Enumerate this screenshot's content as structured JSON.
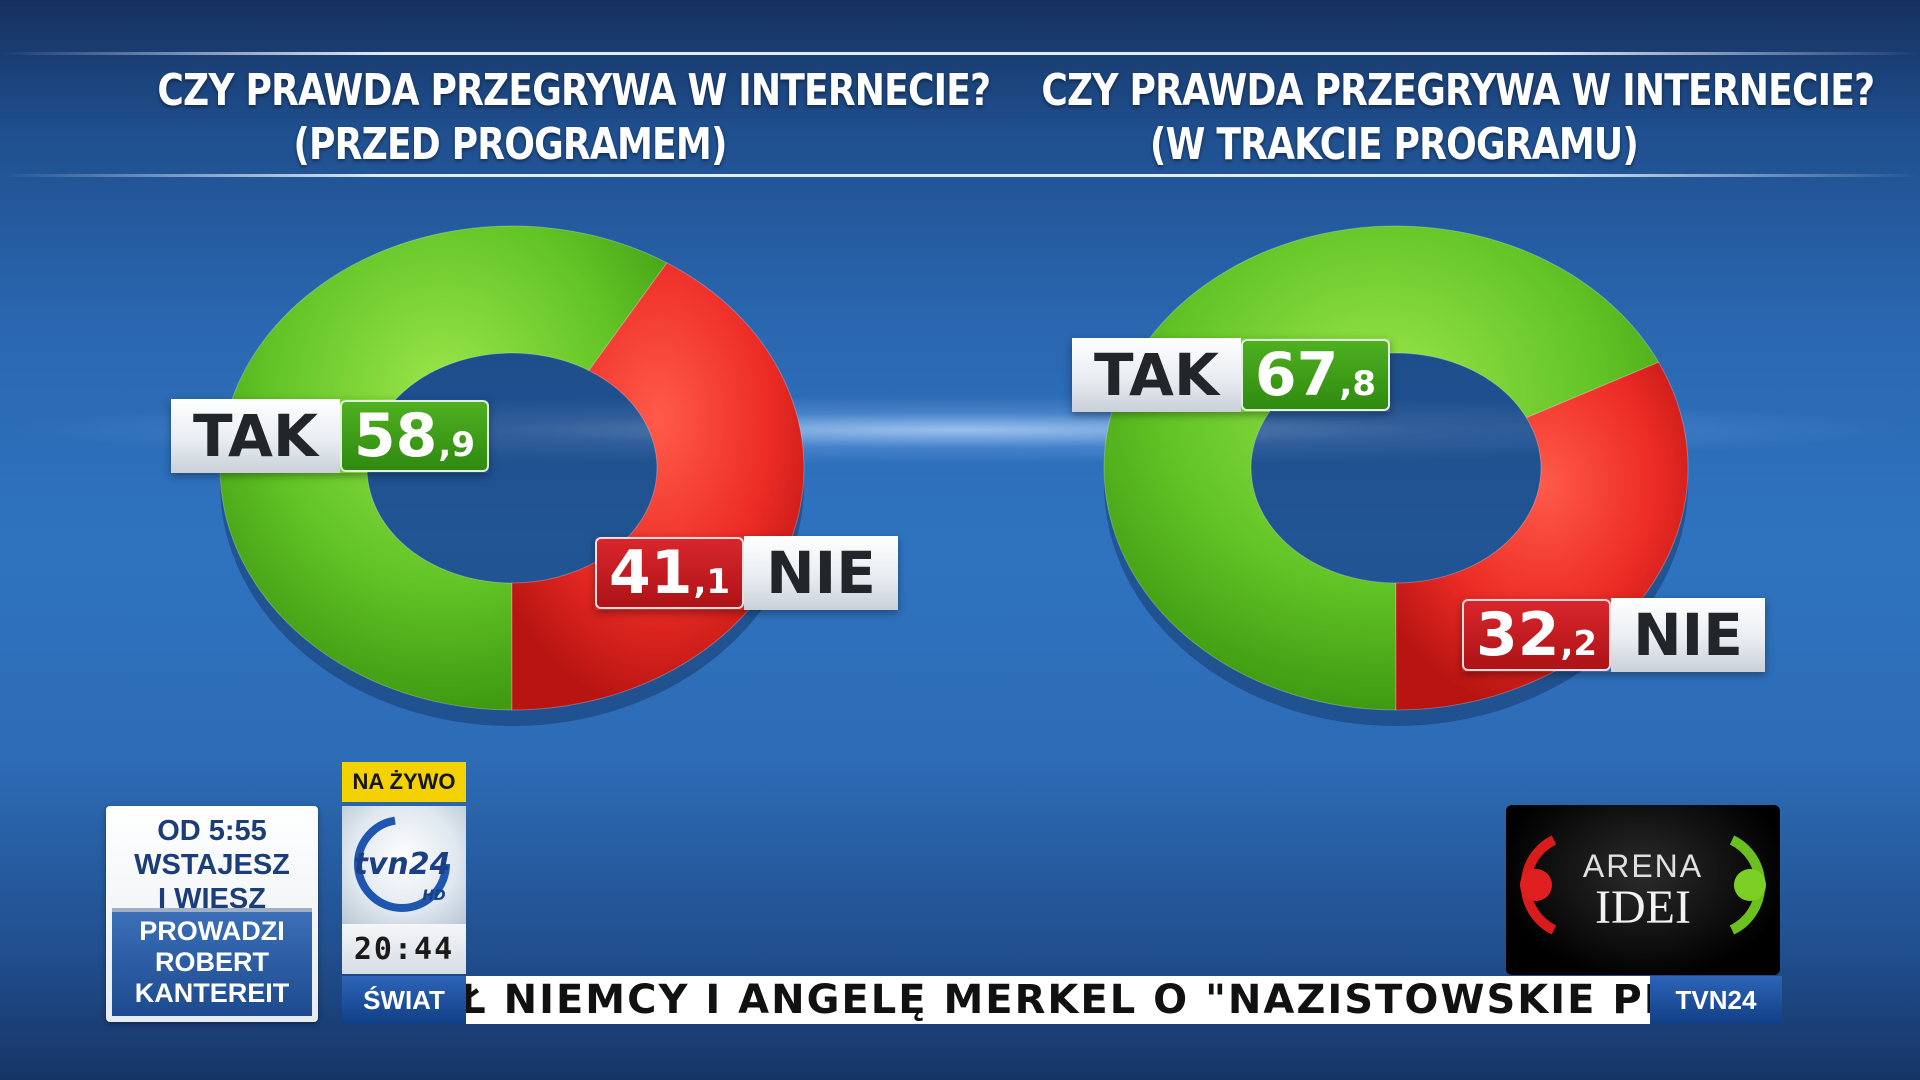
{
  "left_chart": {
    "title_line1": "CZY PRAWDA PRZEGRYWA W INTERNECIE?",
    "title_line2": "(PRZED PROGRAMEM)",
    "tak_label": "TAK",
    "tak_int": "58",
    "tak_dec": ",9",
    "nie_label": "NIE",
    "nie_int": "41",
    "nie_dec": ",1"
  },
  "right_chart": {
    "title_line1": "CZY PRAWDA PRZEGRYWA W INTERNECIE?",
    "title_line2": "(W TRAKCIE PROGRAMU)",
    "tak_label": "TAK",
    "tak_int": "67",
    "tak_dec": ",8",
    "nie_label": "NIE",
    "nie_int": "32",
    "nie_dec": ",2"
  },
  "chart_data": [
    {
      "type": "pie",
      "title": "CZY PRAWDA PRZEGRYWA W INTERNECIE? (PRZED PROGRAMEM)",
      "categories": [
        "TAK",
        "NIE"
      ],
      "values": [
        58.9,
        41.1
      ],
      "colors": [
        "#5cc223",
        "#e8282a"
      ]
    },
    {
      "type": "pie",
      "title": "CZY PRAWDA PRZEGRYWA W INTERNECIE? (W TRAKCIE PROGRAMU)",
      "categories": [
        "TAK",
        "NIE"
      ],
      "values": [
        67.8,
        32.2
      ],
      "colors": [
        "#5cc223",
        "#e8282a"
      ]
    }
  ],
  "promo": {
    "line1": "OD 5:55",
    "line2": "WSTAJESZ",
    "line3": "I WIESZ",
    "host_line1": "PROWADZI",
    "host_line2": "ROBERT",
    "host_line3": "KANTEREIT"
  },
  "live_badge": "NA ŻYWO",
  "channel_logo": {
    "name": "tvn24",
    "suffix": "HD"
  },
  "clock": "20:44",
  "ticker": {
    "category": "ŚWIAT",
    "text": "Ł NIEMCY I ANGELĘ MERKEL O \"NAZISTOWSKIE PRAKTYKI\"",
    "brand": "TVN24"
  },
  "show_logo": {
    "line1": "ARENA",
    "line2": "IDEI"
  },
  "colors": {
    "tak_green": "#5cc223",
    "nie_red": "#e8282a",
    "ticker_blue": "#1f4f9a",
    "live_yellow": "#f4d100"
  }
}
